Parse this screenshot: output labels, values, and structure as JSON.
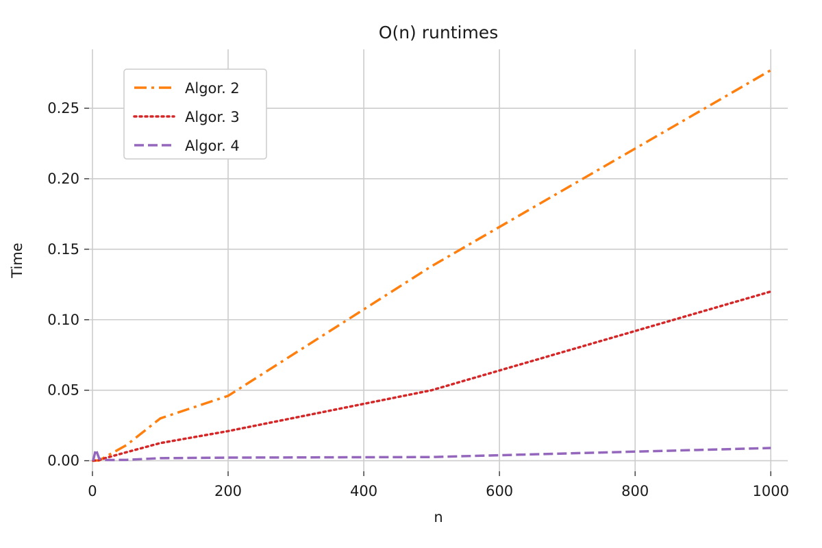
{
  "chart_data": {
    "type": "line",
    "title": "O(n) runtimes",
    "xlabel": "n",
    "ylabel": "Time",
    "xlim": [
      -5,
      1025
    ],
    "ylim": [
      -0.0075,
      0.2918
    ],
    "xticks": [
      0,
      200,
      400,
      600,
      800,
      1000
    ],
    "xtick_labels": [
      "0",
      "200",
      "400",
      "600",
      "800",
      "1000"
    ],
    "yticks": [
      0.0,
      0.05,
      0.1,
      0.15,
      0.2,
      0.25
    ],
    "ytick_labels": [
      "0.00",
      "0.05",
      "0.10",
      "0.15",
      "0.20",
      "0.25"
    ],
    "grid": true,
    "legend_position": "top-left",
    "series": [
      {
        "name": "Algor. 2",
        "color": "#ff7f0e",
        "style": "dashdot",
        "x": [
          1,
          10,
          20,
          50,
          100,
          200,
          500,
          1000
        ],
        "y": [
          0.0,
          0.0002,
          0.003,
          0.011,
          0.03,
          0.046,
          0.138,
          0.277
        ]
      },
      {
        "name": "Algor. 3",
        "color": "#d62728",
        "style": "dotted",
        "x": [
          1,
          10,
          20,
          50,
          100,
          200,
          500,
          1000
        ],
        "y": [
          0.0,
          0.0004,
          0.002,
          0.006,
          0.0125,
          0.021,
          0.05,
          0.12
        ]
      },
      {
        "name": "Algor. 4",
        "color": "#9467bd",
        "style": "dashed",
        "x": [
          1,
          5,
          10,
          20,
          50,
          100,
          200,
          500,
          1000
        ],
        "y": [
          0.0,
          0.008,
          0.0015,
          0.0005,
          0.0006,
          0.0018,
          0.0022,
          0.0026,
          0.009
        ]
      }
    ]
  }
}
